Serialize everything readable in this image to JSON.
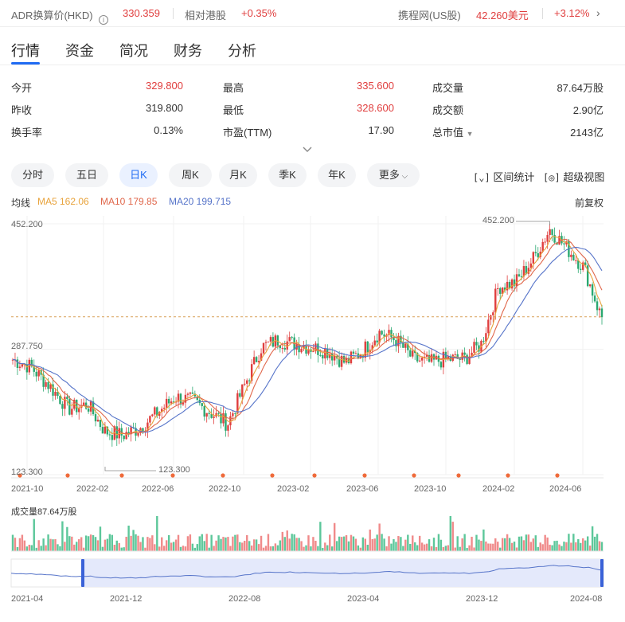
{
  "header": {
    "adr_label": "ADR换算价(HKD)",
    "adr_info_icon": "info-icon",
    "adr_value": "330.359",
    "relative_label": "相对港股",
    "relative_value": "+0.35%",
    "us_label": "携程网(US股)",
    "us_price": "42.260美元",
    "us_change": "+3.12%",
    "us_arrow_icon": "chevron-right-icon"
  },
  "tabs": [
    {
      "label": "行情"
    },
    {
      "label": "资金"
    },
    {
      "label": "简况"
    },
    {
      "label": "财务"
    },
    {
      "label": "分析"
    }
  ],
  "stats": [
    {
      "label": "今开",
      "value": "329.800"
    },
    {
      "label": "最高",
      "value": "335.600"
    },
    {
      "label": "成交量",
      "value": "87.64万股"
    },
    {
      "label": "昨收",
      "value": "319.800"
    },
    {
      "label": "最低",
      "value": "328.600"
    },
    {
      "label": "成交额",
      "value": "2.90亿"
    },
    {
      "label": "换手率",
      "value": "0.13%"
    },
    {
      "label": "市盈(TTM)",
      "value": "17.90"
    },
    {
      "label": "总市值",
      "value": "2143亿"
    }
  ],
  "expand_icon": "chevron-down-icon",
  "periods": [
    {
      "label": "分时"
    },
    {
      "label": "五日"
    },
    {
      "label": "日K"
    },
    {
      "label": "周K"
    },
    {
      "label": "月K"
    },
    {
      "label": "季K"
    },
    {
      "label": "年K"
    },
    {
      "label": "更多"
    }
  ],
  "tools": {
    "range_stats": "区间统计",
    "super_view": "超级视图"
  },
  "ma_legend": {
    "title": "均线",
    "ma5": "MA5 162.06",
    "ma10": "MA10 179.85",
    "ma20": "MA20 199.715",
    "adjust": "前复权"
  },
  "volume_label": "成交量87.64万股",
  "colors": {
    "up": "#e03e3e",
    "down": "#2aa870",
    "ma5": "#e8a33c",
    "ma10": "#e0674b",
    "ma20": "#5674c9",
    "accent": "#1f6bf3"
  },
  "chart_data": {
    "type": "candlestick",
    "y_axis_labels": [
      "452.200",
      "287.750",
      "123.300"
    ],
    "ylim": [
      123.3,
      452.2
    ],
    "current_price_line": 330.359,
    "annotations": [
      {
        "text": "452.200",
        "x": "2024-05",
        "y": 452.2
      },
      {
        "text": "123.300",
        "x": "2022-03",
        "y": 123.3
      }
    ],
    "x_tick_labels": [
      "2021-10",
      "2022-02",
      "2022-06",
      "2022-10",
      "2023-02",
      "2023-06",
      "2023-10",
      "2024-02",
      "2024-06"
    ],
    "price_path": [
      [
        "2021-10",
        275
      ],
      [
        "2021-11",
        265
      ],
      [
        "2021-12",
        240
      ],
      [
        "2022-01",
        210
      ],
      [
        "2022-02",
        215
      ],
      [
        "2022-03",
        180
      ],
      [
        "2022-04",
        175
      ],
      [
        "2022-05",
        185
      ],
      [
        "2022-06",
        205
      ],
      [
        "2022-07",
        225
      ],
      [
        "2022-08",
        220
      ],
      [
        "2022-09",
        205
      ],
      [
        "2022-10",
        190
      ],
      [
        "2022-11",
        240
      ],
      [
        "2022-12",
        290
      ],
      [
        "2023-01",
        300
      ],
      [
        "2023-02",
        295
      ],
      [
        "2023-03",
        290
      ],
      [
        "2023-04",
        285
      ],
      [
        "2023-05",
        270
      ],
      [
        "2023-06",
        285
      ],
      [
        "2023-07",
        310
      ],
      [
        "2023-08",
        300
      ],
      [
        "2023-09",
        275
      ],
      [
        "2023-10",
        270
      ],
      [
        "2023-11",
        275
      ],
      [
        "2023-12",
        275
      ],
      [
        "2024-01",
        295
      ],
      [
        "2024-02",
        370
      ],
      [
        "2024-03",
        375
      ],
      [
        "2024-04",
        405
      ],
      [
        "2024-05",
        445
      ],
      [
        "2024-06",
        420
      ],
      [
        "2024-07",
        395
      ],
      [
        "2024-08",
        330
      ]
    ],
    "navigator_x_labels": [
      "2021-04",
      "2021-12",
      "2022-08",
      "2023-04",
      "2023-12",
      "2024-08"
    ]
  }
}
